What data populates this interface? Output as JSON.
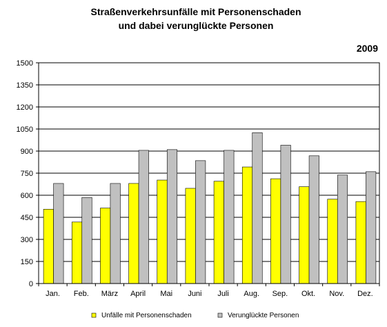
{
  "chart_data": {
    "type": "bar",
    "title": [
      "Straßenverkehrsunfälle mit Personenschaden",
      "und dabei verunglückte Personen"
    ],
    "year_label": "2009",
    "categories": [
      "Jan.",
      "Feb.",
      "März",
      "April",
      "Mai",
      "Juni",
      "Juli",
      "Aug.",
      "Sep.",
      "Okt.",
      "Nov.",
      "Dez."
    ],
    "series": [
      {
        "name": "Unfälle mit Personenschaden",
        "color": "#ffff00",
        "values": [
          505,
          418,
          513,
          680,
          703,
          647,
          695,
          792,
          712,
          658,
          573,
          557
        ]
      },
      {
        "name": "Verunglückte Personen",
        "color": "#c0c0c0",
        "values": [
          680,
          585,
          680,
          905,
          910,
          835,
          905,
          1025,
          940,
          868,
          737,
          760
        ]
      }
    ],
    "ylim": [
      0,
      1500
    ],
    "yticks": [
      0,
      150,
      300,
      450,
      600,
      750,
      900,
      1050,
      1200,
      1350,
      1500
    ],
    "grid": true,
    "legend_position": "bottom",
    "xlabel": "",
    "ylabel": ""
  }
}
